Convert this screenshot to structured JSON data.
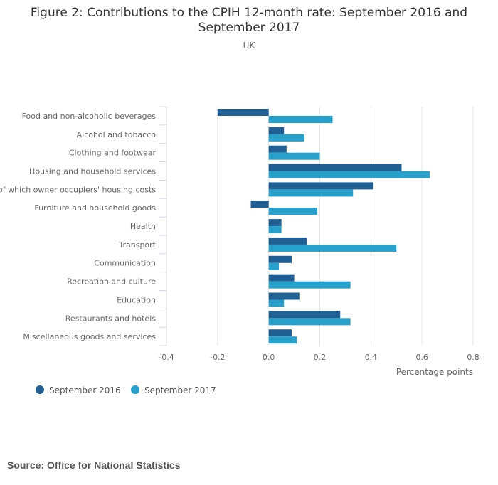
{
  "header": {
    "title": "Figure 2: Contributions to the CPIH 12-month rate: September 2016 and September 2017",
    "subtitle": "UK"
  },
  "source": "Source: Office for National Statistics",
  "colors": {
    "series_2016": "#206095",
    "series_2017": "#27a0cc",
    "grid": "#e6e6e6",
    "axis": "#ccd6eb",
    "label": "#666666"
  },
  "chart_data": {
    "type": "bar",
    "orientation": "horizontal",
    "categories": [
      "Food and non-alcoholic beverages",
      "Alcohol and tobacco",
      "Clothing and footwear",
      "Housing and household services",
      "of which owner occupiers' housing costs",
      "Furniture and household goods",
      "Health",
      "Transport",
      "Communication",
      "Recreation and culture",
      "Education",
      "Restaurants and hotels",
      "Miscellaneous goods and services"
    ],
    "series": [
      {
        "name": "September 2016",
        "values": [
          -0.2,
          0.06,
          0.07,
          0.52,
          0.41,
          -0.07,
          0.05,
          0.15,
          0.09,
          0.1,
          0.12,
          0.28,
          0.09
        ]
      },
      {
        "name": "September 2017",
        "values": [
          0.25,
          0.14,
          0.2,
          0.63,
          0.33,
          0.19,
          0.05,
          0.5,
          0.04,
          0.32,
          0.06,
          0.32,
          0.11
        ]
      }
    ],
    "xlabel": "Percentage points",
    "xlim": [
      -0.4,
      0.8
    ],
    "xticks": [
      "-0.4",
      "-0.2",
      "0.0",
      "0.2",
      "0.4",
      "0.6",
      "0.8"
    ],
    "grid": true,
    "legend_position": "bottom-left"
  }
}
